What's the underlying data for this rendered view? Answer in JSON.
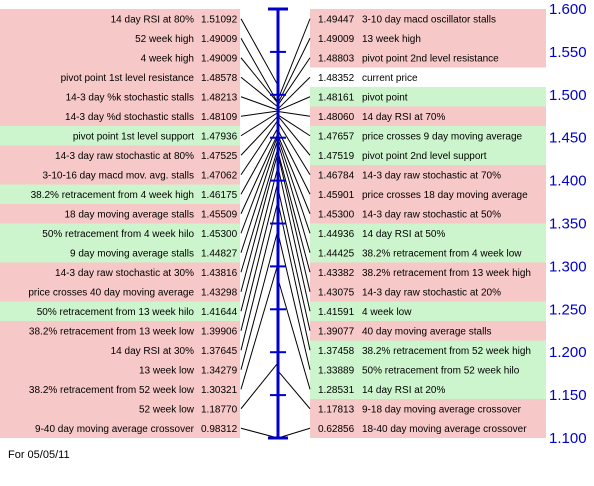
{
  "colors": {
    "red_row": "#f6c8c8",
    "green_row": "#cdf5cd",
    "white_row": "#ffffff",
    "axis": "#0000cc",
    "connector": "#000000"
  },
  "footer": "For 05/05/11",
  "chart_data": {
    "type": "pivot-ladder",
    "axis": {
      "ylim": [
        1.1,
        1.6
      ],
      "ticks": [
        "1.600",
        "1.550",
        "1.500",
        "1.450",
        "1.400",
        "1.350",
        "1.300",
        "1.250",
        "1.200",
        "1.150",
        "1.100"
      ],
      "scale_marks": [
        1.6,
        1.55,
        1.5,
        1.45,
        1.4,
        1.35,
        1.3,
        1.25,
        1.2,
        1.15,
        1.1
      ]
    },
    "left": [
      {
        "label": "14 day RSI at 80%",
        "value": "1.51092",
        "color": "red"
      },
      {
        "label": "52 week high",
        "value": "1.49009",
        "color": "red"
      },
      {
        "label": "4 week high",
        "value": "1.49009",
        "color": "red"
      },
      {
        "label": "pivot point 1st level resistance",
        "value": "1.48578",
        "color": "red"
      },
      {
        "label": "14-3 day %k stochastic stalls",
        "value": "1.48213",
        "color": "red"
      },
      {
        "label": "14-3 day %d stochastic stalls",
        "value": "1.48109",
        "color": "red"
      },
      {
        "label": "pivot point 1st level support",
        "value": "1.47936",
        "color": "green"
      },
      {
        "label": "14-3 day raw stochastic at 80%",
        "value": "1.47525",
        "color": "red"
      },
      {
        "label": "3-10-16 day macd mov. avg. stalls",
        "value": "1.47062",
        "color": "red"
      },
      {
        "label": "38.2% retracement from 4 week high",
        "value": "1.46175",
        "color": "green"
      },
      {
        "label": "18 day moving average stalls",
        "value": "1.45509",
        "color": "red"
      },
      {
        "label": "50% retracement from 4 week hilo",
        "value": "1.45300",
        "color": "green"
      },
      {
        "label": "9 day moving average stalls",
        "value": "1.44827",
        "color": "green"
      },
      {
        "label": "14-3 day raw stochastic at 30%",
        "value": "1.43816",
        "color": "red"
      },
      {
        "label": "price crosses 40 day moving average",
        "value": "1.43298",
        "color": "red"
      },
      {
        "label": "50% retracement from 13 week hilo",
        "value": "1.41644",
        "color": "green"
      },
      {
        "label": "38.2% retracement from 13 week low",
        "value": "1.39906",
        "color": "red"
      },
      {
        "label": "14 day RSI at 30%",
        "value": "1.37645",
        "color": "red"
      },
      {
        "label": "13 week low",
        "value": "1.34279",
        "color": "red"
      },
      {
        "label": "38.2% retracement from 52 week low",
        "value": "1.30321",
        "color": "red"
      },
      {
        "label": "52 week low",
        "value": "1.18770",
        "color": "red"
      },
      {
        "label": "9-40 day moving average crossover",
        "value": "0.98312",
        "color": "red"
      }
    ],
    "right": [
      {
        "label": "3-10 day macd oscillator stalls",
        "value": "1.49447",
        "color": "red"
      },
      {
        "label": "13 week high",
        "value": "1.49009",
        "color": "red"
      },
      {
        "label": "pivot point 2nd level resistance",
        "value": "1.48803",
        "color": "red"
      },
      {
        "label": "current price",
        "value": "1.48352",
        "color": "white"
      },
      {
        "label": "pivot point",
        "value": "1.48161",
        "color": "green"
      },
      {
        "label": "14 day RSI at 70%",
        "value": "1.48060",
        "color": "red"
      },
      {
        "label": "price crosses 9 day moving average",
        "value": "1.47657",
        "color": "green"
      },
      {
        "label": "pivot point 2nd level support",
        "value": "1.47519",
        "color": "green"
      },
      {
        "label": "14-3 day raw stochastic at 70%",
        "value": "1.46784",
        "color": "red"
      },
      {
        "label": "price crosses 18 day moving average",
        "value": "1.45901",
        "color": "red"
      },
      {
        "label": "14-3 day raw stochastic at 50%",
        "value": "1.45300",
        "color": "red"
      },
      {
        "label": "14 day RSI at 50%",
        "value": "1.44936",
        "color": "green"
      },
      {
        "label": "38.2% retracement from 4 week low",
        "value": "1.44425",
        "color": "green"
      },
      {
        "label": "38.2% retracement from 13 week high",
        "value": "1.43382",
        "color": "red"
      },
      {
        "label": "14-3 day raw stochastic at 20%",
        "value": "1.43075",
        "color": "red"
      },
      {
        "label": "4 week low",
        "value": "1.41591",
        "color": "green"
      },
      {
        "label": "40 day moving average stalls",
        "value": "1.39077",
        "color": "red"
      },
      {
        "label": "38.2% retracement from 52 week high",
        "value": "1.37458",
        "color": "green"
      },
      {
        "label": "50% retracement from 52 week hilo",
        "value": "1.33889",
        "color": "green"
      },
      {
        "label": "14 day RSI at 20%",
        "value": "1.28531",
        "color": "green"
      },
      {
        "label": "9-18 day moving average crossover",
        "value": "1.17813",
        "color": "red"
      },
      {
        "label": "18-40 day moving average crossover",
        "value": "0.62856",
        "color": "red"
      }
    ]
  }
}
